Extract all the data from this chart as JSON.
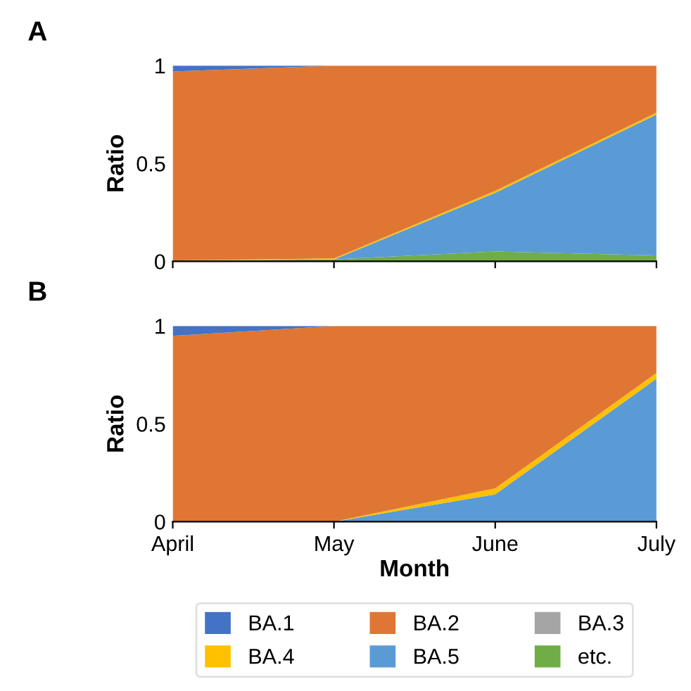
{
  "chart_data": [
    {
      "type": "area",
      "stacked": true,
      "title": "A",
      "ylabel": "Ratio",
      "categories": [
        null,
        null,
        null,
        null
      ],
      "ylim": [
        0,
        1
      ],
      "yticks": [
        0,
        0.5,
        1
      ],
      "tick_labels": "y",
      "grid": false,
      "series": [
        {
          "color": "#70ad47",
          "values": [
            0.005,
            0.01,
            0.05,
            0.03
          ]
        },
        {
          "color": "#5b9bd5",
          "values": [
            0,
            0,
            0.3,
            0.72
          ]
        },
        {
          "color": "#ffc000",
          "values": [
            0,
            0.005,
            0.01,
            0.01
          ]
        },
        {
          "color": "#a5a5a5",
          "values": [
            null,
            null,
            null,
            null
          ]
        },
        {
          "color": "#e07634",
          "values": [
            0.965,
            0.985,
            0.64,
            0.24
          ]
        },
        {
          "color": "#4472c4",
          "values": [
            0.03,
            0,
            0,
            0
          ]
        }
      ]
    },
    {
      "type": "area",
      "stacked": true,
      "title": "B",
      "xlabel": "Month",
      "ylabel": "Ratio",
      "categories": [
        "April",
        "May",
        "June",
        "July"
      ],
      "ylim": [
        0,
        1
      ],
      "yticks": [
        0,
        0.5,
        1
      ],
      "grid": false,
      "legend": "bottom",
      "series": [
        {
          "name": "etc.",
          "color": "#70ad47",
          "values": [
            null,
            null,
            null,
            null
          ]
        },
        {
          "name": "BA.5",
          "color": "#5b9bd5",
          "values": [
            0,
            0,
            0.14,
            0.73
          ]
        },
        {
          "name": "BA.4",
          "color": "#ffc000",
          "values": [
            0,
            0,
            0.03,
            0.03
          ]
        },
        {
          "name": "BA.3",
          "color": "#a5a5a5",
          "values": [
            null,
            null,
            null,
            null
          ]
        },
        {
          "name": "BA.2",
          "color": "#e07634",
          "values": [
            0.95,
            1.0,
            0.83,
            0.24
          ]
        },
        {
          "name": "BA.1",
          "color": "#4472c4",
          "values": [
            0.05,
            0,
            0,
            0
          ]
        }
      ]
    }
  ]
}
